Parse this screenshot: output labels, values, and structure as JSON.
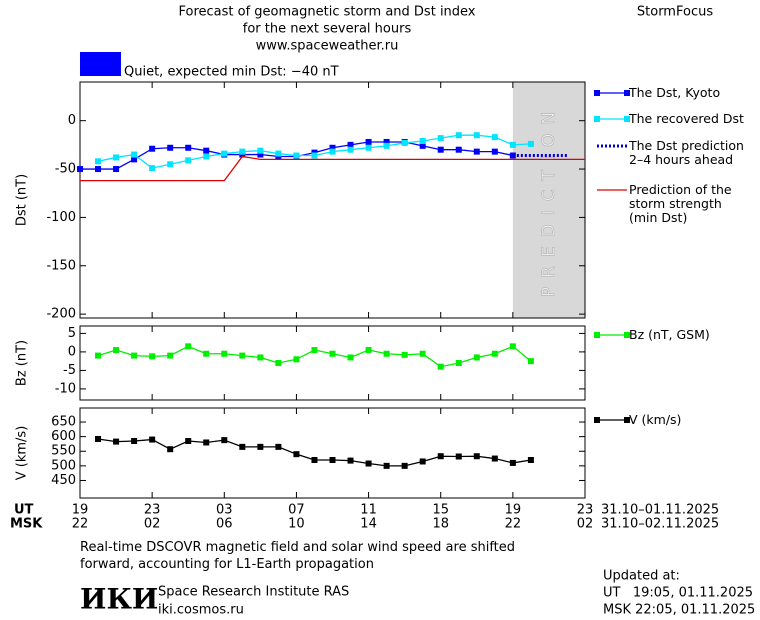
{
  "header": {
    "title": [
      "Forecast of geomagnetic storm and Dst index",
      "for the next several hours",
      "www.spaceweather.ru"
    ],
    "brand": "StormFocus",
    "status": "Quiet, expected min Dst: −40 nT",
    "status_color": "#0000ff"
  },
  "chart_data": [
    {
      "type": "line",
      "ylabel": "Dst (nT)",
      "xlim": [
        0,
        28
      ],
      "ylim": [
        -204,
        40
      ],
      "yticks": [
        0,
        -50,
        -100,
        -150,
        -200
      ],
      "prediction_band": {
        "x": [
          24,
          28
        ],
        "label": "PREDICTION"
      },
      "series": [
        {
          "name": "The Dst, Kyoto",
          "color": "#0000ff",
          "marker": "square",
          "style": "solid",
          "x": [
            0,
            1,
            2,
            3,
            4,
            5,
            6,
            7,
            8,
            9,
            10,
            11,
            12,
            13,
            14,
            15,
            16,
            17,
            18,
            19,
            20,
            21,
            22,
            23,
            24
          ],
          "values": [
            -50,
            -50,
            -50,
            -40,
            -29,
            -28,
            -28,
            -31,
            -35,
            -35,
            -35,
            -37,
            -37,
            -33,
            -28,
            -25,
            -22,
            -22,
            -22,
            -26,
            -30,
            -30,
            -32,
            -32,
            -36
          ]
        },
        {
          "name": "The recovered Dst",
          "color": "#00e5ff",
          "marker": "square",
          "style": "solid",
          "x": [
            1,
            2,
            3,
            4,
            5,
            6,
            7,
            8,
            9,
            10,
            11,
            12,
            13,
            14,
            15,
            16,
            17,
            18,
            19,
            20,
            21,
            22,
            23,
            24,
            25
          ],
          "values": [
            -42,
            -38,
            -35,
            -49,
            -45,
            -41,
            -37,
            -34,
            -32,
            -31,
            -34,
            -36,
            -36,
            -32,
            -30,
            -28,
            -26,
            -23,
            -21,
            -18,
            -15,
            -15,
            -17,
            -25,
            -24
          ]
        },
        {
          "name": "The Dst prediction\n2–4 hours ahead",
          "color": "#0000cc",
          "marker": "none",
          "style": "dotted",
          "x": [
            24,
            27
          ],
          "values": [
            -36,
            -36
          ]
        },
        {
          "name": "Prediction of the\nstorm strength\n(min Dst)",
          "color": "#e00000",
          "marker": "none",
          "style": "solid",
          "x": [
            0,
            8,
            9,
            10,
            28
          ],
          "values": [
            -62,
            -62,
            -37,
            -40,
            -40
          ]
        }
      ]
    },
    {
      "type": "line",
      "ylabel": "Bz (nT)",
      "xlim": [
        0,
        28
      ],
      "ylim": [
        -13,
        7
      ],
      "yticks": [
        5,
        0,
        -5,
        -10
      ],
      "series": [
        {
          "name": "Bz (nT, GSM)",
          "color": "#00ee00",
          "marker": "square",
          "style": "solid",
          "x": [
            1,
            2,
            3,
            4,
            5,
            6,
            7,
            8,
            9,
            10,
            11,
            12,
            13,
            14,
            15,
            16,
            17,
            18,
            19,
            20,
            21,
            22,
            23,
            24,
            25
          ],
          "values": [
            -1,
            0.5,
            -1,
            -1.2,
            -1,
            1.5,
            -0.5,
            -0.5,
            -1,
            -1.5,
            -3,
            -2,
            0.5,
            -0.5,
            -1.5,
            0.5,
            -0.5,
            -0.8,
            -0.5,
            -4,
            -3,
            -1.5,
            -0.5,
            1.5,
            -2.5
          ]
        }
      ]
    },
    {
      "type": "line",
      "ylabel": "V (km/s)",
      "xlim": [
        0,
        28
      ],
      "ylim": [
        390,
        698
      ],
      "yticks": [
        450,
        500,
        550,
        600,
        650
      ],
      "xlabel": "UT",
      "x2label": "MSK",
      "x_dates": "31.10–01.11.2025",
      "x2_dates": "31.10–02.11.2025",
      "xticks": [
        {
          "value": 0,
          "label": "19"
        },
        {
          "value": 4,
          "label": "23"
        },
        {
          "value": 8,
          "label": "03"
        },
        {
          "value": 12,
          "label": "07"
        },
        {
          "value": 16,
          "label": "11"
        },
        {
          "value": 20,
          "label": "15"
        },
        {
          "value": 24,
          "label": "19"
        },
        {
          "value": 28,
          "label": "23"
        }
      ],
      "x2ticks": [
        {
          "value": 0,
          "label": "22"
        },
        {
          "value": 4,
          "label": "02"
        },
        {
          "value": 8,
          "label": "06"
        },
        {
          "value": 12,
          "label": "10"
        },
        {
          "value": 16,
          "label": "14"
        },
        {
          "value": 20,
          "label": "18"
        },
        {
          "value": 24,
          "label": "22"
        },
        {
          "value": 28,
          "label": "02"
        }
      ],
      "series": [
        {
          "name": "V (km/s)",
          "color": "#000000",
          "marker": "square",
          "style": "solid",
          "x": [
            1,
            2,
            3,
            4,
            5,
            6,
            7,
            8,
            9,
            10,
            11,
            12,
            13,
            14,
            15,
            16,
            17,
            18,
            19,
            20,
            21,
            22,
            23,
            24,
            25
          ],
          "values": [
            592,
            583,
            585,
            590,
            557,
            585,
            580,
            588,
            565,
            565,
            565,
            540,
            520,
            520,
            518,
            508,
            500,
            500,
            515,
            533,
            532,
            533,
            525,
            510,
            520
          ]
        }
      ]
    }
  ],
  "footer": {
    "note": "Real-time DSCOVR magnetic field and solar wind speed are shifted\nforward, accounting for L1-Earth propagation",
    "logo": "ИКИ",
    "institute": "Space Research Institute RAS",
    "site": "iki.cosmos.ru",
    "updated": [
      "Updated at:",
      "UT   19:05, 01.11.2025",
      "MSK 22:05, 01.11.2025"
    ]
  }
}
